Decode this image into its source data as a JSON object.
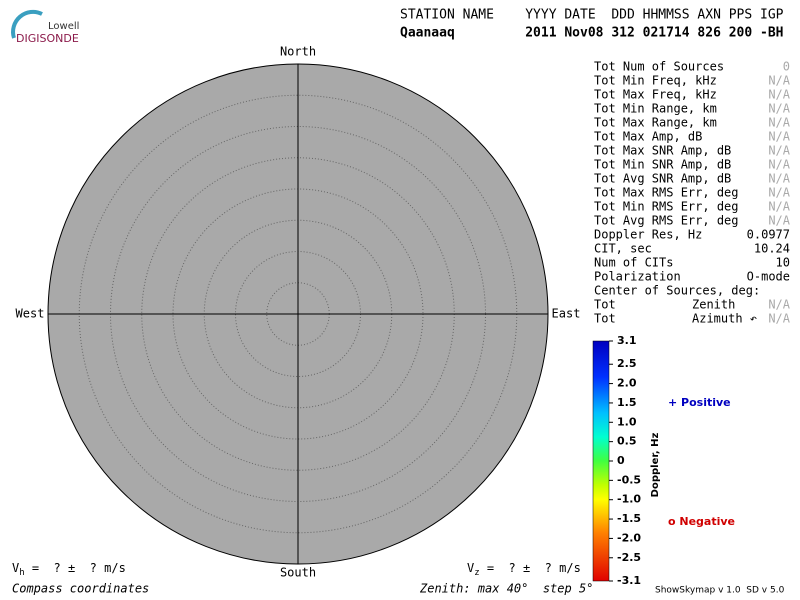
{
  "header": {
    "logo_top": "Lowell",
    "logo_bottom": "DIGISONDE",
    "columns": "STATION NAME    YYYY DATE  DDD HHMMSS AXN PPS IGP",
    "values": "Qaanaaq         2011 Nov08 312 021714 826 200 -BH"
  },
  "compass": {
    "north": "North",
    "south": "South",
    "west": "West",
    "east": "East"
  },
  "stats": [
    {
      "label": "Tot Num of Sources",
      "value": "0"
    },
    {
      "label": "Tot Min Freq, kHz",
      "value": "N/A"
    },
    {
      "label": "Tot Max Freq, kHz",
      "value": "N/A"
    },
    {
      "label": "Tot Min Range, km",
      "value": "N/A"
    },
    {
      "label": "Tot Max Range, km",
      "value": "N/A"
    },
    {
      "label": "Tot Max Amp, dB",
      "value": "N/A"
    },
    {
      "label": "Tot Max SNR Amp, dB",
      "value": "N/A"
    },
    {
      "label": "Tot Min SNR Amp, dB",
      "value": "N/A"
    },
    {
      "label": "Tot Avg SNR Amp, dB",
      "value": "N/A"
    },
    {
      "label": "Tot Max RMS Err, deg",
      "value": "N/A"
    },
    {
      "label": "Tot Min RMS Err, deg",
      "value": "N/A"
    },
    {
      "label": "Tot Avg RMS Err, deg",
      "value": "N/A"
    },
    {
      "label": "Doppler Res, Hz",
      "value": "0.0977"
    },
    {
      "label": "CIT, sec",
      "value": "10.24"
    },
    {
      "label": "Num of CITs",
      "value": "10"
    },
    {
      "label": "Polarization",
      "value": "O-mode"
    },
    {
      "label": "Center of Sources, deg:"
    },
    {
      "label": "Tot",
      "sub": "Zenith",
      "value": "N/A"
    },
    {
      "label": "Tot",
      "sub": "Azimuth ↶",
      "value": "N/A"
    }
  ],
  "chart_data": {
    "type": "colorbar",
    "label": "Doppler, Hz",
    "ylim": [
      -3.1,
      3.1
    ],
    "yticks": [
      3.1,
      2.5,
      {
        "value": 2,
        "label": "2.0"
      },
      1.5,
      {
        "value": 1,
        "label": "1.0"
      },
      0.5,
      0,
      -0.5,
      {
        "value": -1,
        "label": "-1.0"
      },
      -1.5,
      {
        "value": -2,
        "label": "-2.0"
      },
      -2.5,
      -3.1
    ],
    "legend": {
      "positive": "+ Positive",
      "negative": "o Negative"
    }
  },
  "footer": {
    "vh": {
      "symbol": "V",
      "sub": "h",
      "text": " =  ? ±  ? m/s"
    },
    "vz": {
      "symbol": "V",
      "sub": "z",
      "text": " =  ? ±  ? m/s"
    },
    "coords": "Compass coordinates",
    "zenith": "Zenith: max 40°  step 5°",
    "version": "ShowSkymap v 1.0  SD v 5.0"
  }
}
